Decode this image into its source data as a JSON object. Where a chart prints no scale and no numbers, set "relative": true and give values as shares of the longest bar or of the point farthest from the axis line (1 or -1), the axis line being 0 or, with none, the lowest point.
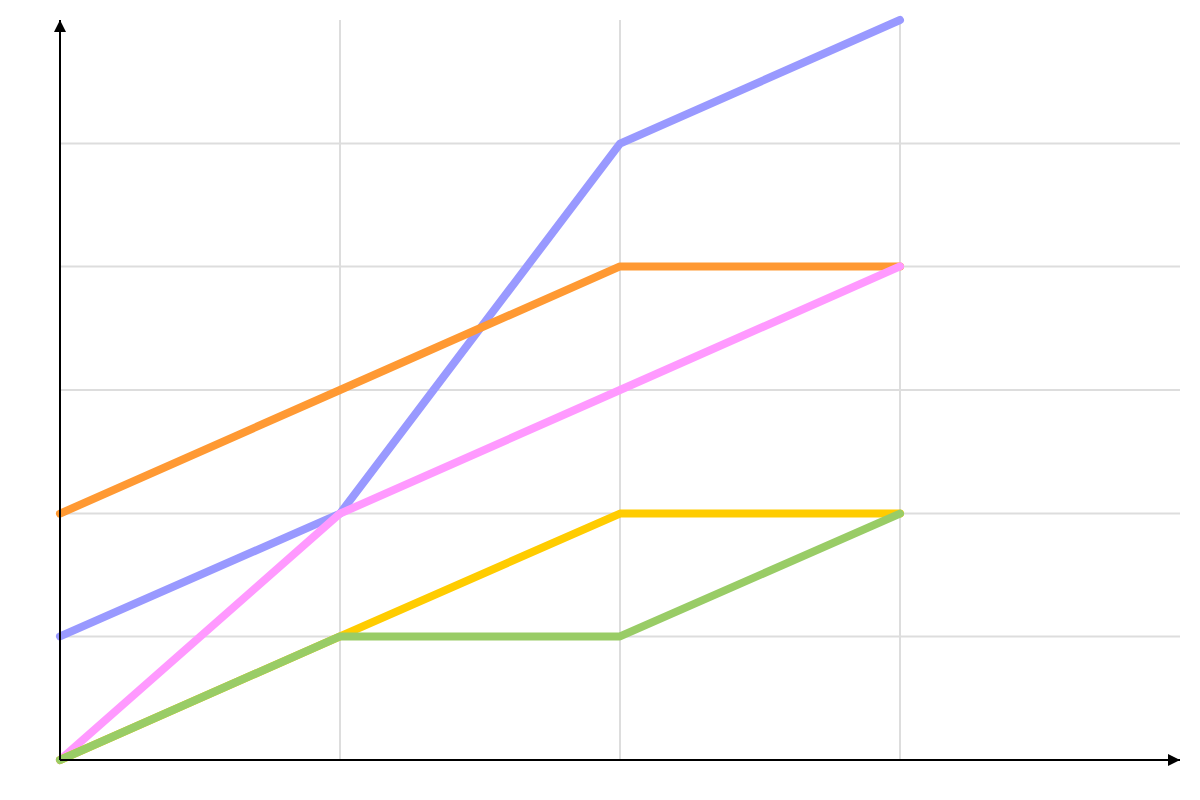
{
  "chart_data": {
    "type": "line",
    "relative": true,
    "grid": true,
    "line_style": "solid",
    "categories": [
      null,
      null,
      null,
      null,
      null
    ],
    "series": [
      {
        "color": "#9999ff",
        "values": [
          0.167,
          0.333,
          0.833,
          1,
          null
        ]
      },
      {
        "color": "#ff9933",
        "values": [
          0.333,
          0.5,
          0.667,
          0.667,
          null
        ]
      },
      {
        "color": "#ff99ff",
        "values": [
          0,
          0.333,
          0.5,
          0.667,
          null
        ]
      },
      {
        "color": "#ffcc00",
        "values": [
          0,
          0.167,
          0.333,
          0.333,
          null
        ]
      },
      {
        "color": "#99cc66",
        "values": [
          0,
          0.167,
          0.167,
          0.333,
          null
        ]
      }
    ]
  }
}
